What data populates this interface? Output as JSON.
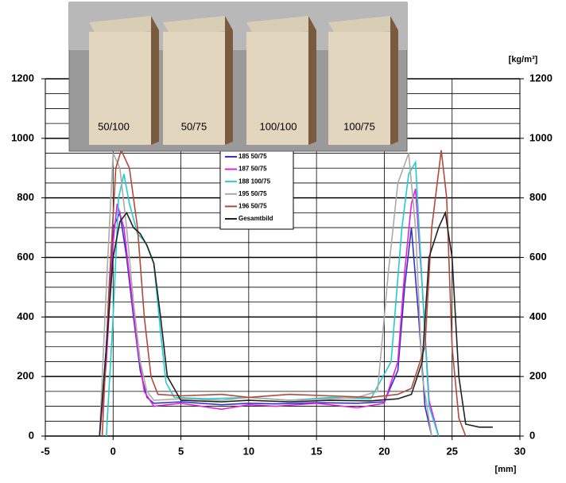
{
  "chart_data": {
    "type": "line",
    "x_label": "[mm]",
    "y2_label": "[kg/m³]",
    "xlim": [
      -5,
      30
    ],
    "xticks": [
      -5,
      0,
      5,
      10,
      15,
      20,
      25,
      30
    ],
    "ylim": [
      0,
      1200
    ],
    "yticks": [
      0,
      200,
      400,
      600,
      800,
      1000,
      1200
    ],
    "y2lim": [
      0,
      1200
    ],
    "y2ticks": [
      0,
      200,
      400,
      600,
      800,
      1000,
      1200
    ],
    "yminorticks": [
      50,
      100,
      150,
      250,
      300,
      350,
      450,
      500,
      550,
      650,
      700,
      750,
      850,
      900,
      950,
      1050,
      1100,
      1150
    ],
    "grid": true,
    "series": [
      {
        "name": "185 50/75",
        "color": "#3333cc",
        "x": [
          -1,
          -0.5,
          0,
          0.5,
          1,
          1.5,
          2,
          2.5,
          3,
          5,
          8,
          10,
          12,
          15,
          18,
          20,
          21,
          21.5,
          22,
          22.5,
          23,
          23.5
        ],
        "values": [
          0,
          300,
          700,
          750,
          600,
          400,
          220,
          130,
          110,
          115,
          105,
          110,
          108,
          112,
          110,
          115,
          220,
          500,
          700,
          420,
          100,
          0
        ]
      },
      {
        "name": "187 50/75",
        "color": "#e020e0",
        "x": [
          -1,
          -0.5,
          0,
          0.3,
          0.8,
          1.3,
          1.8,
          2.3,
          3,
          5,
          8,
          10,
          12,
          15,
          18,
          20,
          21,
          21.5,
          22,
          22.3,
          22.8,
          23.3,
          24
        ],
        "values": [
          0,
          250,
          650,
          780,
          700,
          500,
          300,
          150,
          100,
          110,
          90,
          105,
          100,
          110,
          95,
          110,
          250,
          550,
          780,
          830,
          500,
          120,
          0
        ]
      },
      {
        "name": "188 100/75",
        "color": "#22cccc",
        "x": [
          -0.5,
          0,
          0.4,
          0.8,
          1.2,
          1.8,
          2.4,
          3,
          3.5,
          3.9,
          4.5,
          7,
          10,
          13,
          16,
          19,
          20.5,
          21.3,
          21.8,
          22.3,
          22.8,
          23.3,
          24
        ],
        "values": [
          0,
          400,
          800,
          880,
          780,
          680,
          650,
          580,
          350,
          180,
          130,
          125,
          130,
          120,
          130,
          125,
          250,
          700,
          880,
          920,
          500,
          100,
          0
        ]
      },
      {
        "name": "195 50/75",
        "color": "#aaaaaa",
        "x": [
          -1,
          -0.5,
          0,
          0.5,
          1,
          1.5,
          2,
          2.5,
          3,
          5,
          8,
          10,
          13,
          16,
          18,
          19.5,
          20.3,
          21,
          21.8,
          22.3,
          22.8,
          23.5
        ],
        "values": [
          0,
          500,
          950,
          900,
          700,
          450,
          250,
          150,
          120,
          125,
          120,
          130,
          120,
          125,
          130,
          150,
          550,
          850,
          950,
          700,
          200,
          0
        ]
      },
      {
        "name": "196 50/75",
        "color": "#b04a3a",
        "x": [
          -0.8,
          -0.3,
          0.2,
          0.6,
          1.2,
          1.8,
          2.3,
          2.8,
          3.3,
          5,
          8,
          10,
          13,
          16,
          19,
          21,
          22,
          23,
          23.5,
          24.2,
          24.6,
          25,
          25.5,
          26
        ],
        "values": [
          0,
          500,
          900,
          960,
          900,
          700,
          400,
          200,
          140,
          135,
          140,
          130,
          140,
          135,
          130,
          140,
          160,
          300,
          700,
          960,
          800,
          300,
          60,
          0
        ]
      },
      {
        "name": "Gesamtbild",
        "color": "#222222",
        "x": [
          -1,
          -0.5,
          0,
          0.5,
          1,
          1.5,
          2,
          2.5,
          3,
          3.5,
          4,
          5,
          8,
          10,
          13,
          16,
          19,
          21,
          22,
          22.8,
          23.3,
          24,
          24.5,
          25,
          25.5,
          26,
          27,
          28
        ],
        "values": [
          0,
          300,
          600,
          720,
          750,
          700,
          680,
          640,
          580,
          400,
          200,
          120,
          115,
          120,
          115,
          120,
          118,
          125,
          140,
          250,
          600,
          700,
          750,
          600,
          200,
          40,
          30,
          30
        ]
      }
    ],
    "inset_labels": [
      "50/100",
      "50/75",
      "100/100",
      "100/75"
    ]
  }
}
